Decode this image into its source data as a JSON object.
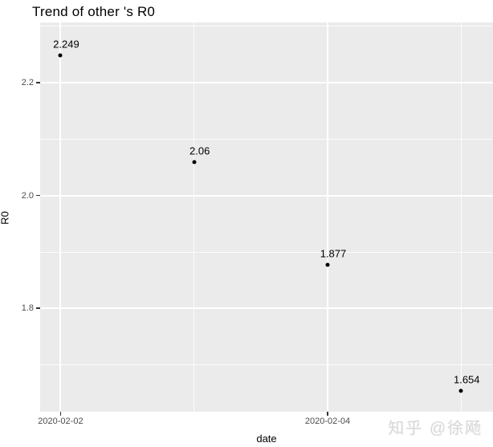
{
  "chart_data": {
    "type": "scatter",
    "title": "Trend of other 's R0",
    "xlabel": "date",
    "ylabel": "R0",
    "points": [
      {
        "date": "2020-02-02",
        "day": 0,
        "value": 2.249,
        "label": "2.249"
      },
      {
        "date": "2020-02-03",
        "day": 1,
        "value": 2.06,
        "label": "2.06"
      },
      {
        "date": "2020-02-04",
        "day": 2,
        "value": 1.877,
        "label": "1.877"
      },
      {
        "date": "2020-02-05",
        "day": 3,
        "value": 1.654,
        "label": "1.654"
      }
    ],
    "x_axis": {
      "ticks": [
        {
          "label": "2020-02-02",
          "day": 0
        },
        {
          "label": "2020-02-04",
          "day": 2
        }
      ],
      "minor_breaks_days": [
        1,
        3
      ],
      "range_days": [
        -0.153,
        3.239
      ]
    },
    "y_axis": {
      "ticks": [
        {
          "label": "2.2",
          "value": 2.2
        },
        {
          "label": "2.0",
          "value": 2.0
        },
        {
          "label": "1.8",
          "value": 1.8
        }
      ],
      "minor_breaks": [
        2.3,
        2.1,
        1.9,
        1.7
      ],
      "range": [
        1.617,
        2.307
      ]
    },
    "grid": true,
    "legend": "none",
    "colors": {
      "panel_background": "#ebebeb",
      "gridline": "#ffffff",
      "tick_mark": "#333333",
      "tick_label": "#4d4d4d",
      "point": "#000000",
      "title": "#000000"
    }
  },
  "watermark": {
    "text": "知乎 @徐飏"
  }
}
